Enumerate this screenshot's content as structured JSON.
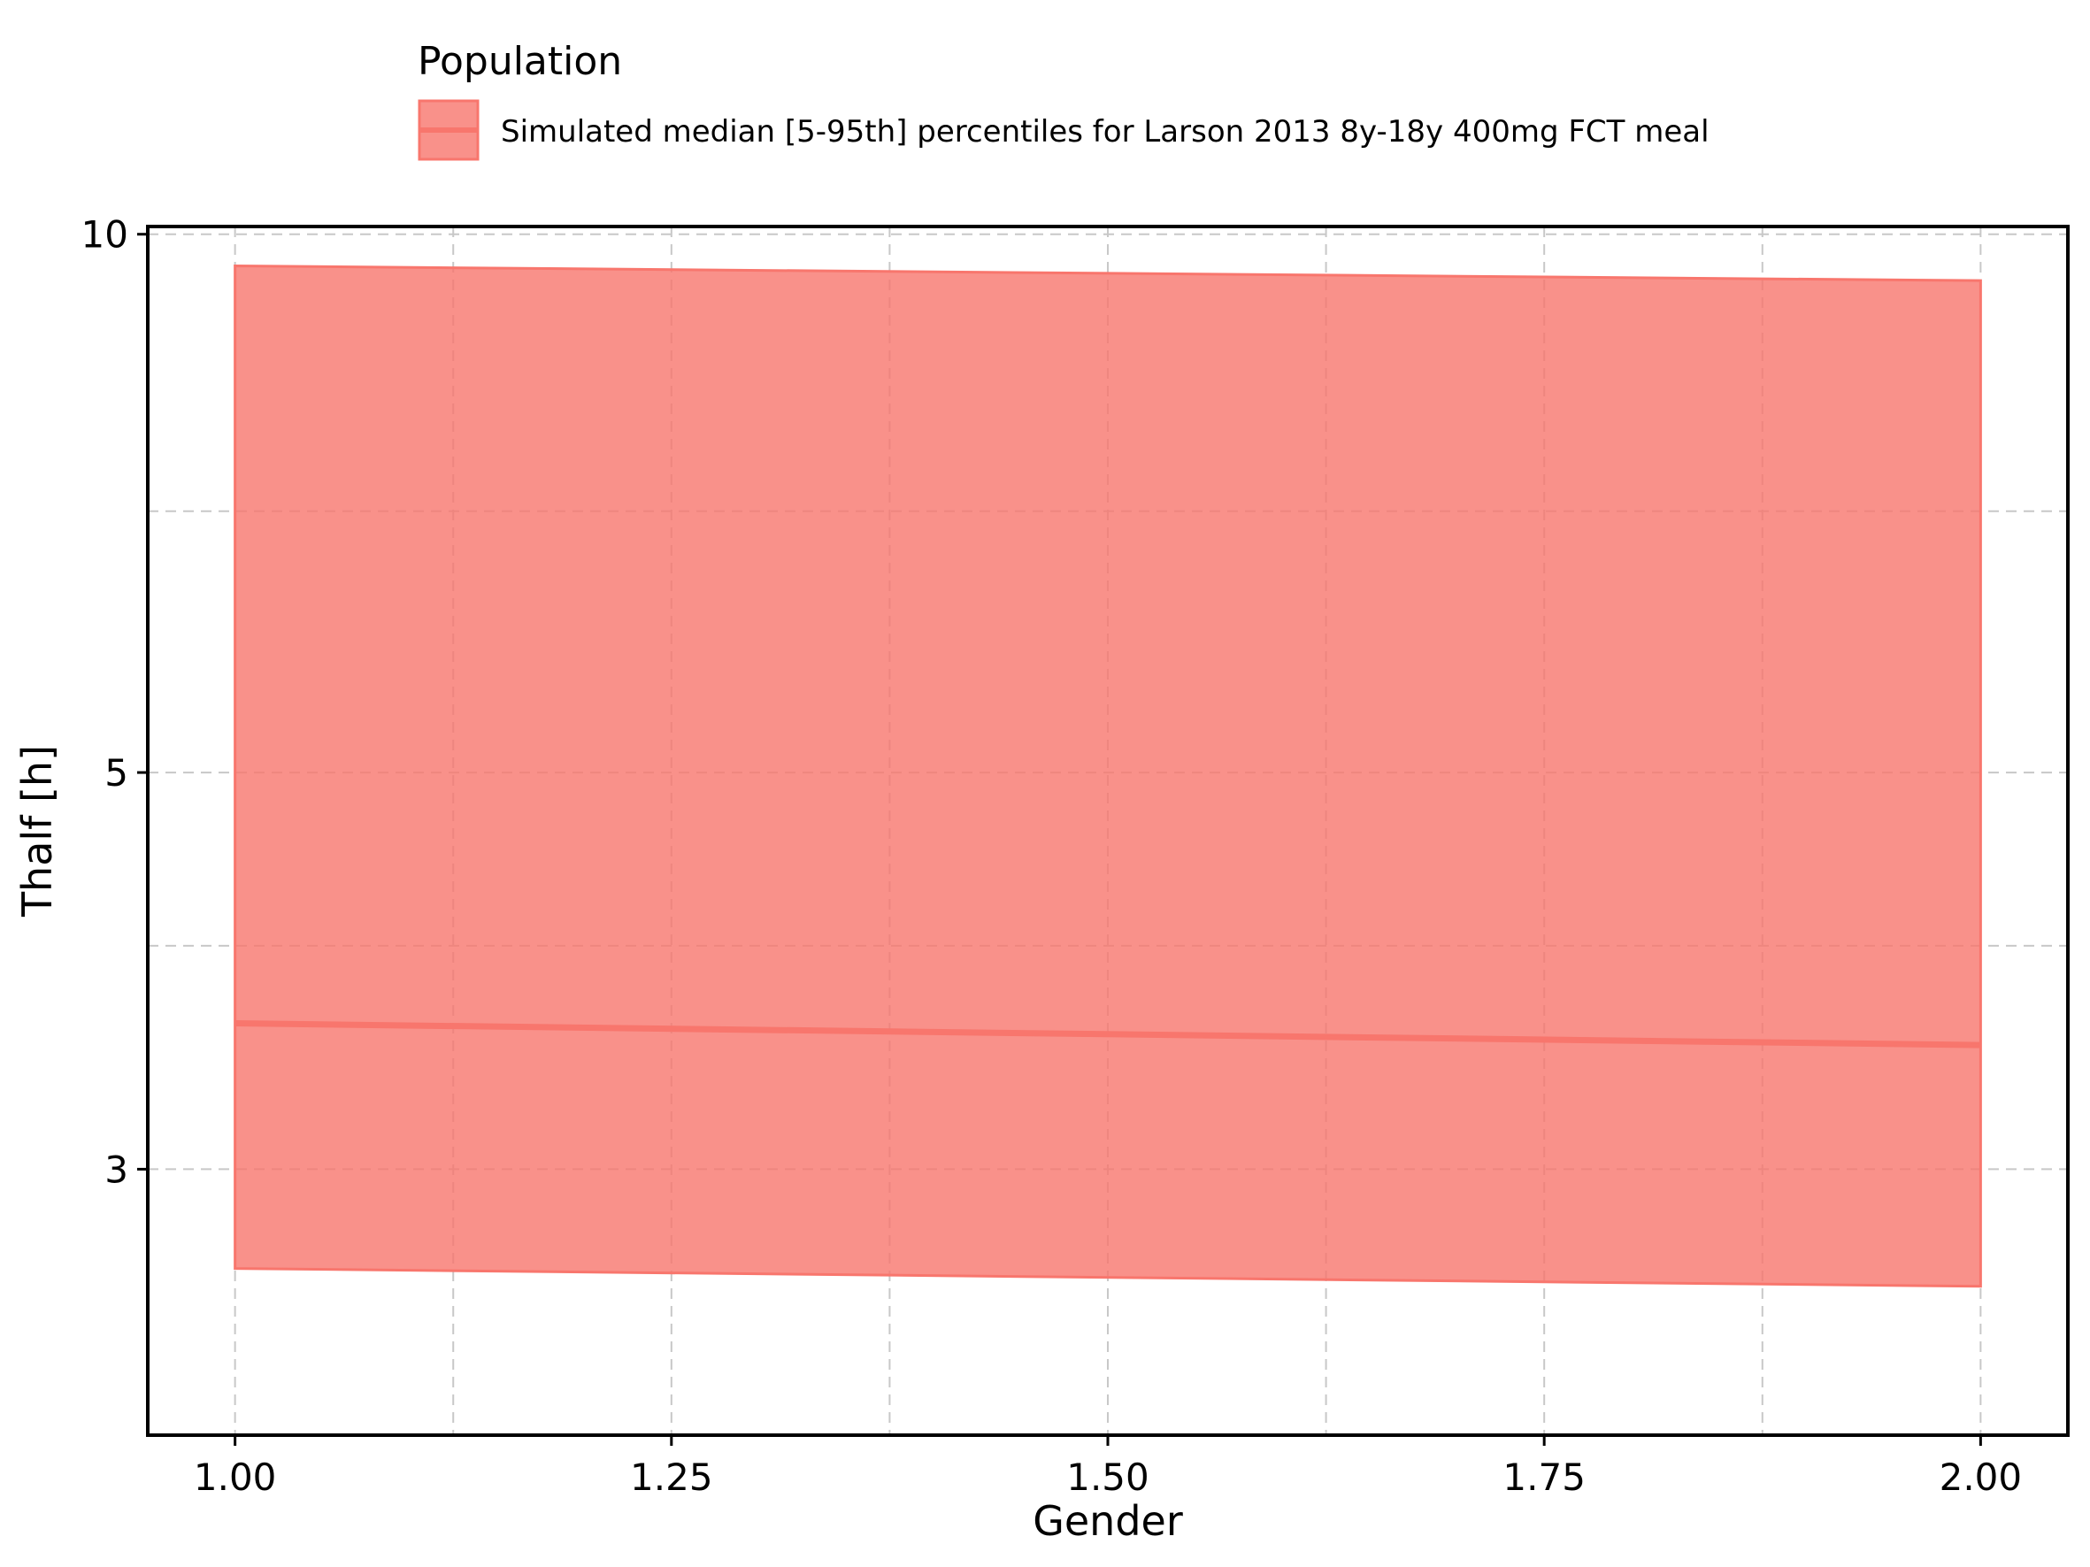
{
  "chart_data": {
    "type": "area",
    "title": "",
    "xlabel": "Gender",
    "ylabel": "Thalf [h]",
    "y_scale": "log",
    "xlim": [
      0.95,
      2.05
    ],
    "ylim": [
      2.13,
      10.1
    ],
    "x_ticks": [
      1.0,
      1.25,
      1.5,
      1.75,
      2.0
    ],
    "x_tick_labels": [
      "1.00",
      "1.25",
      "1.50",
      "1.75",
      "2.00"
    ],
    "y_ticks": [
      3,
      5,
      10
    ],
    "y_tick_labels": [
      "3",
      "5",
      "10"
    ],
    "x_minor_grid": [
      1.125,
      1.375,
      1.625,
      1.875
    ],
    "y_minor_grid": [
      4,
      7
    ],
    "grid": true,
    "legend": {
      "title": "Population",
      "placement": "top",
      "entries": [
        "Simulated median [5-95th] percentiles for Larson 2013 8y-18y 400mg FCT meal"
      ]
    },
    "series": [
      {
        "name": "Simulated median [5-95th] percentiles for Larson 2013 8y-18y 400mg FCT meal",
        "x": [
          1.0,
          2.0
        ],
        "median": [
          3.62,
          3.52
        ],
        "lower": [
          2.64,
          2.58
        ],
        "upper": [
          9.6,
          9.42
        ],
        "color": "#f8766d",
        "fill_color": "#f8766d",
        "fill_opacity": 0.8
      }
    ]
  }
}
